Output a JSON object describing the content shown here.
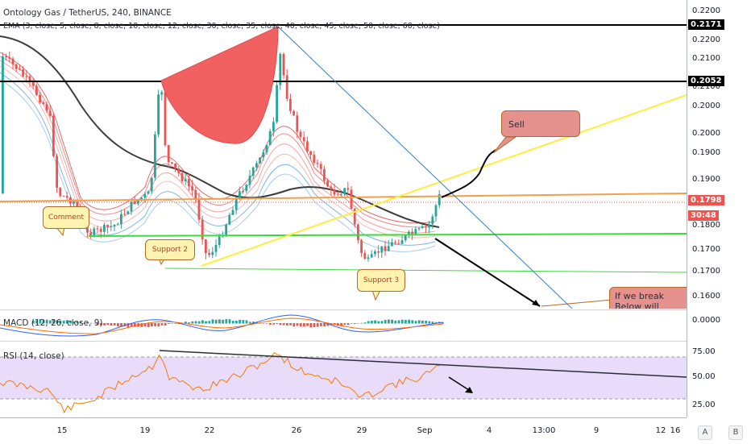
{
  "chart": {
    "title": "Ontology Gas / TetherUS, 240, BINANCE",
    "ema_label": "EMA (3, close, 5, close, 8, close, 10, close, 12, close, 30, close, 35, close, 40, close, 45, close, 50, close, 60, close)",
    "macd_label": "MACD (12, 26, close, 9)",
    "rsi_label": "RSI (14, close)"
  },
  "price_axis": {
    "labels": [
      "0.2200",
      "0.2200",
      "0.2100",
      "0.2100",
      "0.2000",
      "0.2000",
      "0.1900",
      "0.1900",
      "0.1800",
      "0.1700",
      "0.1700",
      "0.1600"
    ],
    "tag_upper": "0.2171",
    "tag_mid": "0.2052",
    "tag_price": "0.1798",
    "tag_timer": "30:48",
    "macd_zero": "0.0000",
    "rsi_labels": [
      "75.00",
      "50.00",
      "25.00"
    ]
  },
  "time_axis": {
    "labels": [
      "15",
      "19",
      "22",
      "26",
      "29",
      "Sep",
      "4",
      "13:00",
      "9",
      "12",
      "16"
    ],
    "corner_a": "A",
    "corner_b": "B"
  },
  "annotations": {
    "comment": "Comment",
    "support2": "Support 2",
    "support3": "Support 3",
    "sell": "Sell",
    "break_text": "If we break  Below will Continue  Do"
  },
  "colors": {
    "up": "#26a69a",
    "down": "#ef5350",
    "trend_yellow": "#ffee3b",
    "support_green": "#3bdb3b",
    "resistance_black": "#000000",
    "rsi_band": "#e8dcfa",
    "callout_fill": "#e5928f"
  }
}
